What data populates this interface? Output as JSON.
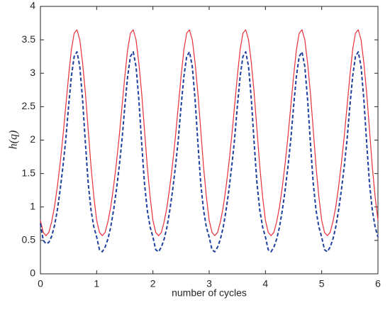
{
  "chart_data": {
    "type": "line",
    "xlabel": "number of cycles",
    "ylabel": "h(q)",
    "x": [
      0,
      0.05,
      0.1,
      0.15,
      0.2,
      0.25,
      0.3,
      0.35,
      0.4,
      0.45,
      0.5,
      0.55,
      0.6,
      0.65,
      0.7,
      0.75,
      0.8,
      0.85,
      0.9,
      0.95,
      1,
      1.05,
      1.1,
      1.15,
      1.2,
      1.25,
      1.3,
      1.35,
      1.4,
      1.45,
      1.5,
      1.55,
      1.6,
      1.65,
      1.7,
      1.75,
      1.8,
      1.85,
      1.9,
      1.95,
      2,
      2.05,
      2.1,
      2.15,
      2.2,
      2.25,
      2.3,
      2.35,
      2.4,
      2.45,
      2.5,
      2.55,
      2.6,
      2.65,
      2.7,
      2.75,
      2.8,
      2.85,
      2.9,
      2.95,
      3,
      3.05,
      3.1,
      3.15,
      3.2,
      3.25,
      3.3,
      3.35,
      3.4,
      3.45,
      3.5,
      3.55,
      3.6,
      3.65,
      3.7,
      3.75,
      3.8,
      3.85,
      3.9,
      3.95,
      4,
      4.05,
      4.1,
      4.15,
      4.2,
      4.25,
      4.3,
      4.35,
      4.4,
      4.45,
      4.5,
      4.55,
      4.6,
      4.65,
      4.7,
      4.75,
      4.8,
      4.85,
      4.9,
      4.95,
      5,
      5.05,
      5.1,
      5.15,
      5.2,
      5.25,
      5.3,
      5.35,
      5.4,
      5.45,
      5.5,
      5.55,
      5.6,
      5.65,
      5.7,
      5.75,
      5.8,
      5.85,
      5.9,
      5.95,
      6
    ],
    "series": [
      {
        "color": "#e8303a",
        "dash": false,
        "values": [
          0.8,
          0.62,
          0.57,
          0.62,
          0.78,
          1.0,
          1.3,
          1.65,
          2.05,
          2.5,
          2.95,
          3.35,
          3.6,
          3.65,
          3.5,
          3.15,
          2.7,
          2.15,
          1.6,
          1.15,
          0.8,
          0.62,
          0.57,
          0.62,
          0.78,
          1.0,
          1.3,
          1.65,
          2.05,
          2.5,
          2.95,
          3.35,
          3.6,
          3.65,
          3.5,
          3.15,
          2.7,
          2.15,
          1.6,
          1.15,
          0.8,
          0.62,
          0.57,
          0.62,
          0.78,
          1.0,
          1.3,
          1.65,
          2.05,
          2.5,
          2.95,
          3.35,
          3.6,
          3.65,
          3.5,
          3.15,
          2.7,
          2.15,
          1.6,
          1.15,
          0.8,
          0.62,
          0.57,
          0.62,
          0.78,
          1.0,
          1.3,
          1.65,
          2.05,
          2.5,
          2.95,
          3.35,
          3.6,
          3.65,
          3.5,
          3.15,
          2.7,
          2.15,
          1.6,
          1.15,
          0.8,
          0.62,
          0.57,
          0.62,
          0.78,
          1.0,
          1.3,
          1.65,
          2.05,
          2.5,
          2.95,
          3.35,
          3.6,
          3.65,
          3.5,
          3.15,
          2.7,
          2.15,
          1.6,
          1.15,
          0.8,
          0.62,
          0.57,
          0.62,
          0.78,
          1.0,
          1.3,
          1.65,
          2.05,
          2.5,
          2.95,
          3.35,
          3.6,
          3.65,
          3.5,
          3.15,
          2.7,
          2.15,
          1.6,
          1.15,
          0.8
        ]
      },
      {
        "color": "#1f3f9f",
        "dash": true,
        "values": [
          0.75,
          0.5,
          0.45,
          0.47,
          0.56,
          0.72,
          0.95,
          1.25,
          1.6,
          2.0,
          2.5,
          2.95,
          3.25,
          3.32,
          3.1,
          2.6,
          1.95,
          1.35,
          0.95,
          0.7,
          0.55,
          0.36,
          0.33,
          0.4,
          0.52,
          0.7,
          0.95,
          1.25,
          1.6,
          2.0,
          2.5,
          2.95,
          3.25,
          3.32,
          3.1,
          2.6,
          1.95,
          1.35,
          0.95,
          0.7,
          0.55,
          0.36,
          0.33,
          0.4,
          0.52,
          0.7,
          0.95,
          1.25,
          1.6,
          2.0,
          2.5,
          2.95,
          3.25,
          3.32,
          3.1,
          2.6,
          1.95,
          1.35,
          0.95,
          0.7,
          0.55,
          0.36,
          0.33,
          0.4,
          0.52,
          0.7,
          0.95,
          1.25,
          1.6,
          2.0,
          2.5,
          2.95,
          3.25,
          3.32,
          3.1,
          2.6,
          1.95,
          1.35,
          0.95,
          0.7,
          0.55,
          0.36,
          0.33,
          0.4,
          0.52,
          0.7,
          0.95,
          1.25,
          1.6,
          2.0,
          2.5,
          2.95,
          3.25,
          3.32,
          3.1,
          2.6,
          1.95,
          1.35,
          0.95,
          0.7,
          0.55,
          0.36,
          0.33,
          0.4,
          0.52,
          0.7,
          0.95,
          1.25,
          1.6,
          2.0,
          2.5,
          2.95,
          3.25,
          3.32,
          3.1,
          2.6,
          1.95,
          1.35,
          0.95,
          0.7,
          0.55
        ]
      }
    ],
    "xlim": [
      0,
      6
    ],
    "xticks": [
      0,
      1,
      2,
      3,
      4,
      5,
      6
    ],
    "ylim": [
      0,
      4
    ],
    "yticks": [
      0,
      0.5,
      1,
      1.5,
      2,
      2.5,
      3,
      3.5,
      4
    ]
  }
}
